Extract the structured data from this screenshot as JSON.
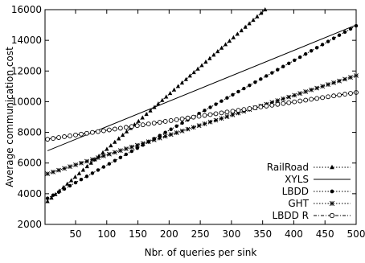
{
  "chart_data": {
    "type": "line",
    "title": "",
    "xlabel": "Nbr. of queries per sink",
    "ylabel": "Average communication cost",
    "xlim": [
      1,
      500
    ],
    "ylim": [
      2000,
      16000
    ],
    "xticks": [
      50,
      100,
      150,
      200,
      250,
      300,
      350,
      400,
      450,
      500
    ],
    "yticks": [
      2000,
      4000,
      6000,
      8000,
      10000,
      12000,
      14000,
      16000
    ],
    "grid": false,
    "legend_position": "bottom-right",
    "series": [
      {
        "name": "RailRoad",
        "marker": "triangle",
        "line": "dotted",
        "x": [
          5,
          354
        ],
        "y": [
          3500,
          16000
        ]
      },
      {
        "name": "XYLS",
        "marker": "none",
        "line": "solid",
        "x": [
          5,
          500
        ],
        "y": [
          6800,
          15000
        ]
      },
      {
        "name": "LBDD",
        "marker": "filled-circle",
        "line": "dotted",
        "x": [
          5,
          500
        ],
        "y": [
          3700,
          14950
        ]
      },
      {
        "name": "GHT",
        "marker": "x-star",
        "line": "dotted",
        "x": [
          5,
          500
        ],
        "y": [
          5300,
          11700
        ]
      },
      {
        "name": "LBDD R",
        "marker": "open-circle",
        "line": "dash-dot",
        "x": [
          5,
          500
        ],
        "y": [
          7550,
          10600
        ]
      }
    ]
  }
}
